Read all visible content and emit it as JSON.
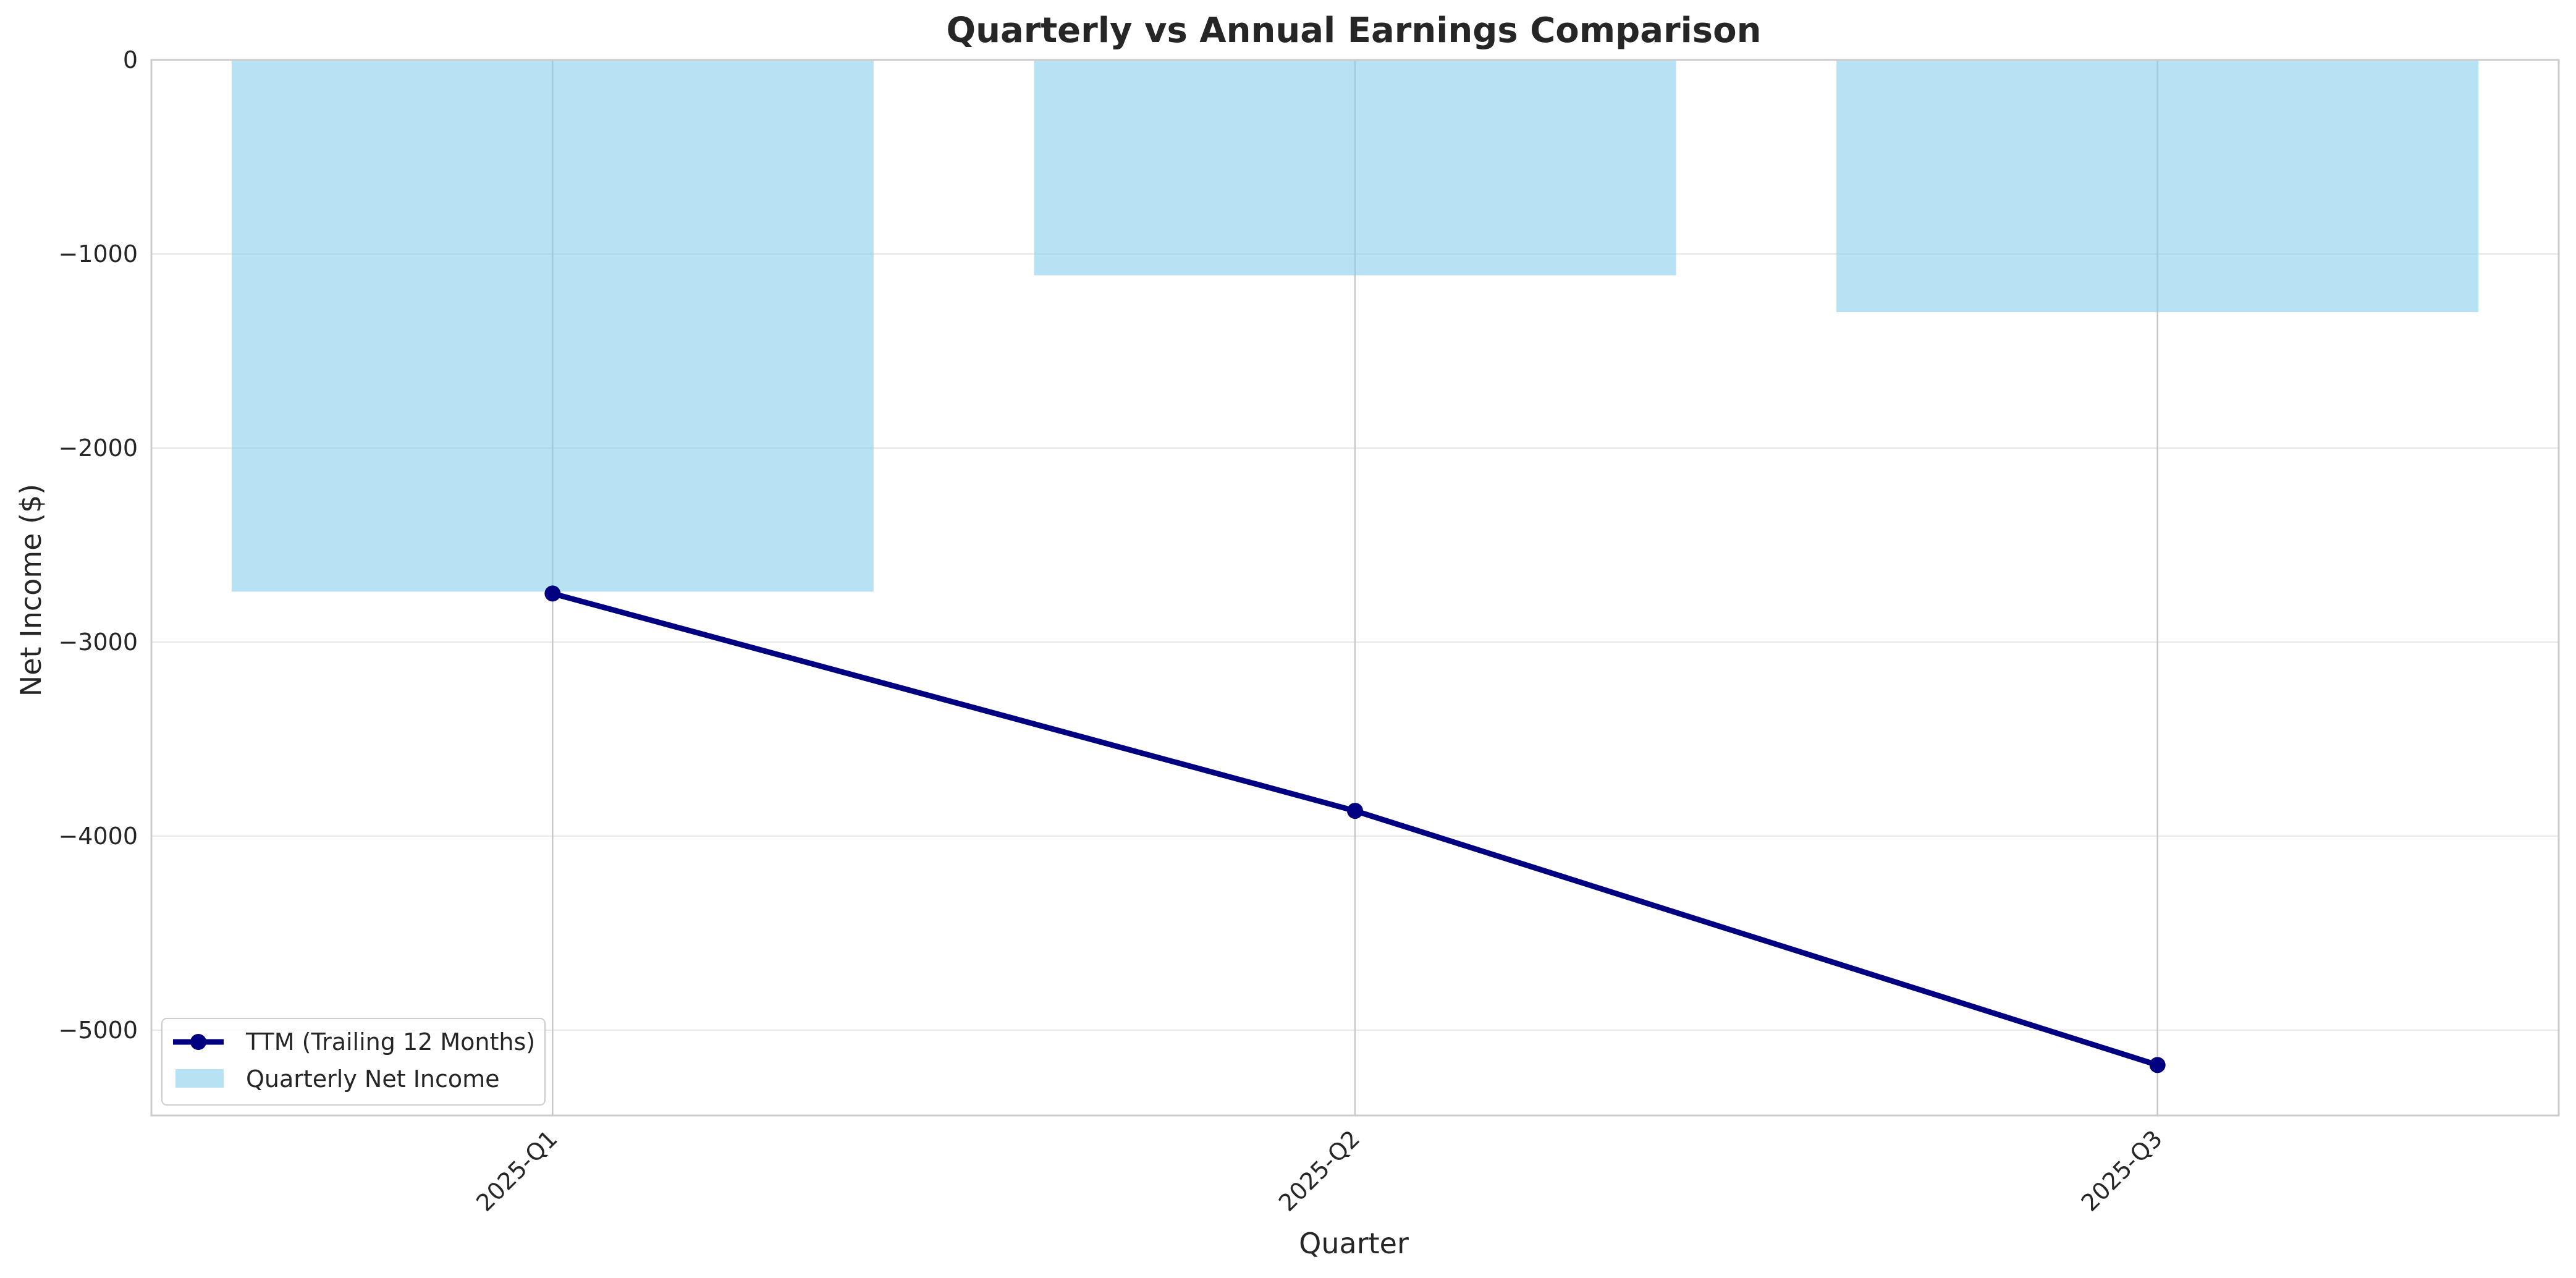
{
  "chart_data": {
    "type": "bar",
    "title": "Quarterly vs Annual Earnings Comparison",
    "xlabel": "Quarter",
    "ylabel": "Net Income ($)",
    "categories": [
      "2025-Q1",
      "2025-Q2",
      "2025-Q3"
    ],
    "ylim": [
      -5440,
      0
    ],
    "yticks": [
      0,
      -1000,
      -2000,
      -3000,
      -4000,
      -5000
    ],
    "ytick_labels": [
      "0",
      "−1000",
      "−2000",
      "−3000",
      "−4000",
      "−5000"
    ],
    "grid": true,
    "legend_position": "lower-left",
    "reference_line": {
      "y": 0,
      "style": "dashed",
      "color": "#f4a6a6"
    },
    "series": [
      {
        "name": "TTM (Trailing 12 Months)",
        "type": "line",
        "values": [
          -2750,
          -3870,
          -5180
        ],
        "color": "#000080",
        "marker": "circle"
      },
      {
        "name": "Quarterly Net Income",
        "type": "bar",
        "values": [
          -2740,
          -1110,
          -1300
        ],
        "color": "#87ceeb"
      }
    ]
  }
}
